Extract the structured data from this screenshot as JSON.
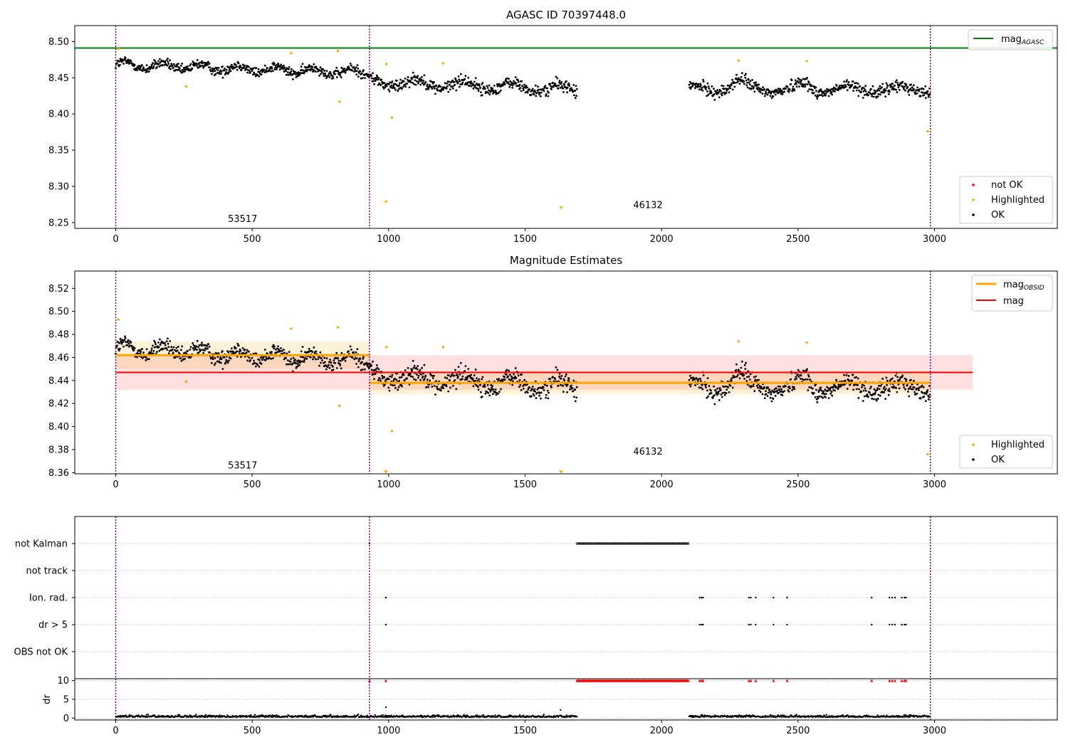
{
  "colors": {
    "ok": "#000000",
    "highlighted": "#ffa500",
    "not_ok": "#ff0000",
    "agasc_line": "#008000",
    "mag_line": "#ff0000",
    "obsid_line": "#ffa500",
    "obs_boundary": "#800080"
  },
  "chart_data": [
    {
      "type": "scatter",
      "title": "AGASC ID 70397448.0",
      "xlim": [
        -150,
        3450
      ],
      "ylim": [
        8.242,
        8.522
      ],
      "x_ticks": [
        0,
        500,
        1000,
        1500,
        2000,
        2500,
        3000
      ],
      "y_ticks": [
        8.25,
        8.3,
        8.35,
        8.4,
        8.45,
        8.5
      ],
      "y_tick_labels": [
        "8.25",
        "8.30",
        "8.35",
        "8.40",
        "8.45",
        "8.50"
      ],
      "obs_boundaries": [
        0,
        930,
        2985
      ],
      "obsid_labels": [
        {
          "text": "53517",
          "x": 465,
          "y": 8.255
        },
        {
          "text": "46132",
          "x": 1950,
          "y": 8.274
        }
      ],
      "agasc_mag": {
        "value": 8.491,
        "x_range": [
          -150,
          3450
        ]
      },
      "legend_top": [
        {
          "label": "mag",
          "sub": "AGASC",
          "color": "#008000",
          "marker": "line"
        }
      ],
      "legend_bottom": [
        {
          "label": "not OK",
          "color": "#ff0000",
          "marker": "dot"
        },
        {
          "label": "Highlighted",
          "color": "#ffa500",
          "marker": "dot"
        },
        {
          "label": "OK",
          "color": "#000000",
          "marker": "dot"
        }
      ],
      "highlighted_points": [
        [
          10,
          8.49
        ],
        [
          258,
          8.438
        ],
        [
          643,
          8.484
        ],
        [
          814,
          8.487
        ],
        [
          820,
          8.417
        ],
        [
          992,
          8.469
        ],
        [
          990,
          8.279
        ],
        [
          1012,
          8.395
        ],
        [
          1200,
          8.47
        ],
        [
          1632,
          8.271
        ],
        [
          2282,
          8.474
        ],
        [
          2532,
          8.473
        ],
        [
          2975,
          8.376
        ]
      ]
    },
    {
      "type": "scatter",
      "title": "Magnitude Estimates",
      "xlim": [
        -150,
        3450
      ],
      "ylim": [
        8.359,
        8.535
      ],
      "x_ticks": [
        0,
        500,
        1000,
        1500,
        2000,
        2500,
        3000
      ],
      "y_ticks": [
        8.36,
        8.38,
        8.4,
        8.42,
        8.44,
        8.46,
        8.48,
        8.5,
        8.52
      ],
      "y_tick_labels": [
        "8.36",
        "8.38",
        "8.40",
        "8.42",
        "8.44",
        "8.46",
        "8.48",
        "8.50",
        "8.52"
      ],
      "obs_boundaries": [
        0,
        930,
        2985
      ],
      "obsid_labels": [
        {
          "text": "53517",
          "x": 465,
          "y": 8.366
        },
        {
          "text": "46132",
          "x": 1950,
          "y": 8.378
        }
      ],
      "mag": {
        "value": 8.447,
        "band": [
          8.432,
          8.462
        ],
        "x_range": [
          0,
          3140
        ]
      },
      "mag_obsid": [
        {
          "x_range": [
            0,
            930
          ],
          "value": 8.462,
          "band": [
            8.45,
            8.474
          ]
        },
        {
          "x_range": [
            930,
            2985
          ],
          "value": 8.438,
          "band": [
            8.428,
            8.448
          ]
        }
      ],
      "legend_top": [
        {
          "label": "mag",
          "sub": "OBSID",
          "color": "#ffa500",
          "marker": "line"
        },
        {
          "label": "mag",
          "sub": "",
          "color": "#ff0000",
          "marker": "line"
        }
      ],
      "legend_bottom": [
        {
          "label": "Highlighted",
          "color": "#ffa500",
          "marker": "dot"
        },
        {
          "label": "OK",
          "color": "#000000",
          "marker": "dot"
        }
      ],
      "highlighted_points": [
        [
          10,
          8.493
        ],
        [
          258,
          8.439
        ],
        [
          643,
          8.485
        ],
        [
          814,
          8.486
        ],
        [
          820,
          8.418
        ],
        [
          992,
          8.469
        ],
        [
          1012,
          8.396
        ],
        [
          1200,
          8.469
        ],
        [
          2282,
          8.474
        ],
        [
          2532,
          8.473
        ],
        [
          2975,
          8.376
        ]
      ],
      "clipped_points": [
        [
          990,
          8.36
        ],
        [
          1632,
          8.36
        ]
      ]
    },
    {
      "type": "scatter",
      "title": "",
      "xlim": [
        -150,
        3450
      ],
      "categories": [
        "not Kalman",
        "not track",
        "Ion. rad.",
        "dr > 5",
        "OBS not OK"
      ],
      "not_kalman_range": [
        1690,
        2100
      ],
      "not_kalman_extra": [
        930
      ],
      "ion_rad_x": [
        990,
        2140,
        2147,
        2152,
        2320,
        2327,
        2345,
        2410,
        2460,
        2770,
        2835,
        2845,
        2855,
        2880,
        2890,
        2895
      ],
      "dr5_x": [
        990,
        2140,
        2147,
        2152,
        2320,
        2327,
        2345,
        2410,
        2460,
        2770,
        2835,
        2845,
        2855,
        2880,
        2890,
        2895
      ],
      "obs_boundaries": [
        0,
        930,
        2985
      ]
    },
    {
      "type": "scatter",
      "title": "",
      "xlim": [
        -150,
        3450
      ],
      "ylim": [
        -0.5,
        10.5
      ],
      "ylabel": "dr",
      "x_ticks": [
        0,
        500,
        1000,
        1500,
        2000,
        2500,
        3000
      ],
      "y_ticks": [
        0,
        5,
        10
      ],
      "y_tick_labels": [
        "0",
        "5",
        "10"
      ],
      "obs_boundaries": [
        0,
        930,
        2985
      ],
      "capped_value": 10,
      "capped_range": [
        1690,
        2100
      ],
      "capped_extra": [
        930,
        990,
        2140,
        2147,
        2152,
        2320,
        2327,
        2345,
        2410,
        2460,
        2770,
        2835,
        2845,
        2855,
        2880,
        2890,
        2895
      ],
      "outliers": [
        [
          990,
          2.9
        ],
        [
          1630,
          2.2
        ]
      ]
    }
  ]
}
